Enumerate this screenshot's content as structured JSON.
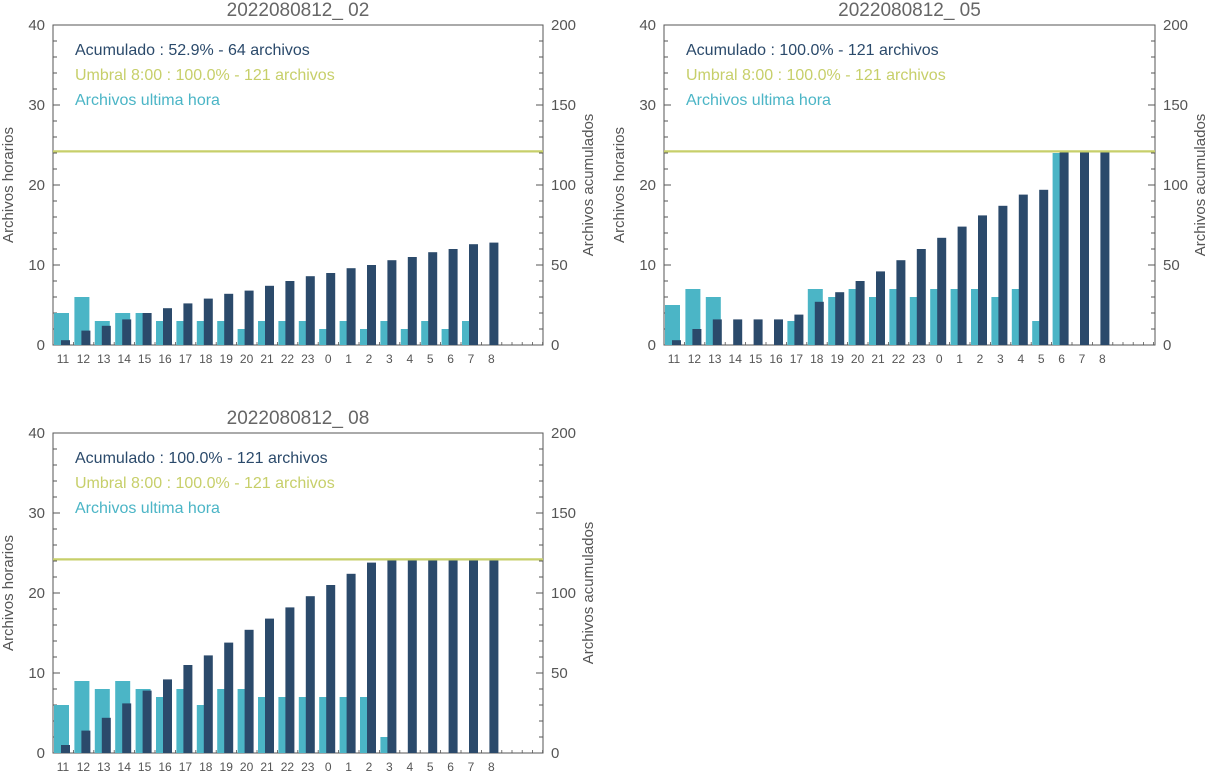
{
  "colors": {
    "acumulado": "#2b4a6b",
    "umbral": "#c7cf6a",
    "ultima_hora": "#4bb5c6",
    "axis": "#555555",
    "title": "#666666"
  },
  "chart_data": [
    {
      "type": "bar",
      "title": "2022080812_ 02",
      "ylabel_left": "Archivos horarios",
      "ylabel_right": "Archivos acumulados",
      "ylim_left": [
        0,
        40
      ],
      "ylim_right": [
        0,
        200
      ],
      "yticks_left": [
        0,
        10,
        20,
        30,
        40
      ],
      "yticks_right": [
        0,
        50,
        100,
        150,
        200
      ],
      "categories": [
        "11",
        "12",
        "13",
        "14",
        "15",
        "16",
        "17",
        "18",
        "19",
        "20",
        "21",
        "22",
        "23",
        "0",
        "1",
        "2",
        "3",
        "4",
        "5",
        "6",
        "7",
        "8"
      ],
      "legend": [
        "Acumulado : 52.9% - 64 archivos",
        "Umbral 8:00 : 100.0% - 121 archivos",
        "Archivos ultima hora"
      ],
      "umbral": 121,
      "series": [
        {
          "name": "Archivos ultima hora",
          "axis": "left",
          "values": [
            4,
            6,
            3,
            4,
            4,
            3,
            3,
            3,
            3,
            2,
            3,
            3,
            3,
            2,
            3,
            2,
            3,
            2,
            3,
            2,
            3,
            0
          ]
        },
        {
          "name": "Acumulado",
          "axis": "right",
          "values": [
            3,
            9,
            12,
            16,
            20,
            23,
            26,
            29,
            32,
            34,
            37,
            40,
            43,
            45,
            48,
            50,
            53,
            55,
            58,
            60,
            63,
            64
          ]
        }
      ]
    },
    {
      "type": "bar",
      "title": "2022080812_ 05",
      "ylabel_left": "Archivos horarios",
      "ylabel_right": "Archivos acumulados",
      "ylim_left": [
        0,
        40
      ],
      "ylim_right": [
        0,
        200
      ],
      "yticks_left": [
        0,
        10,
        20,
        30,
        40
      ],
      "yticks_right": [
        0,
        50,
        100,
        150,
        200
      ],
      "categories": [
        "11",
        "12",
        "13",
        "14",
        "15",
        "16",
        "17",
        "18",
        "19",
        "20",
        "21",
        "22",
        "23",
        "0",
        "1",
        "2",
        "3",
        "4",
        "5",
        "6",
        "7",
        "8"
      ],
      "legend": [
        "Acumulado : 100.0% - 121 archivos",
        "Umbral 8:00 : 100.0% - 121 archivos",
        "Archivos ultima hora"
      ],
      "umbral": 121,
      "series": [
        {
          "name": "Archivos ultima hora",
          "axis": "left",
          "values": [
            5,
            7,
            6,
            0,
            0,
            0,
            3,
            7,
            6,
            7,
            6,
            7,
            6,
            7,
            7,
            7,
            6,
            7,
            3,
            24,
            0,
            0
          ]
        },
        {
          "name": "Acumulado",
          "axis": "right",
          "values": [
            3,
            10,
            16,
            16,
            16,
            16,
            19,
            27,
            33,
            40,
            46,
            53,
            60,
            67,
            74,
            81,
            87,
            94,
            97,
            121,
            121,
            121
          ]
        }
      ]
    },
    {
      "type": "bar",
      "title": "2022080812_ 08",
      "ylabel_left": "Archivos horarios",
      "ylabel_right": "Archivos acumulados",
      "ylim_left": [
        0,
        40
      ],
      "ylim_right": [
        0,
        200
      ],
      "yticks_left": [
        0,
        10,
        20,
        30,
        40
      ],
      "yticks_right": [
        0,
        50,
        100,
        150,
        200
      ],
      "categories": [
        "11",
        "12",
        "13",
        "14",
        "15",
        "16",
        "17",
        "18",
        "19",
        "20",
        "21",
        "22",
        "23",
        "0",
        "1",
        "2",
        "3",
        "4",
        "5",
        "6",
        "7",
        "8"
      ],
      "legend": [
        "Acumulado : 100.0% - 121 archivos",
        "Umbral 8:00 : 100.0% - 121 archivos",
        "Archivos ultima hora"
      ],
      "umbral": 121,
      "series": [
        {
          "name": "Archivos ultima hora",
          "axis": "left",
          "values": [
            6,
            9,
            8,
            9,
            8,
            7,
            8,
            6,
            8,
            8,
            7,
            7,
            7,
            7,
            7,
            7,
            2,
            0,
            0,
            0,
            0,
            0
          ]
        },
        {
          "name": "Acumulado",
          "axis": "right",
          "values": [
            5,
            14,
            22,
            31,
            39,
            46,
            55,
            61,
            69,
            77,
            84,
            91,
            98,
            105,
            112,
            119,
            121,
            121,
            121,
            121,
            121,
            121
          ]
        }
      ]
    }
  ]
}
